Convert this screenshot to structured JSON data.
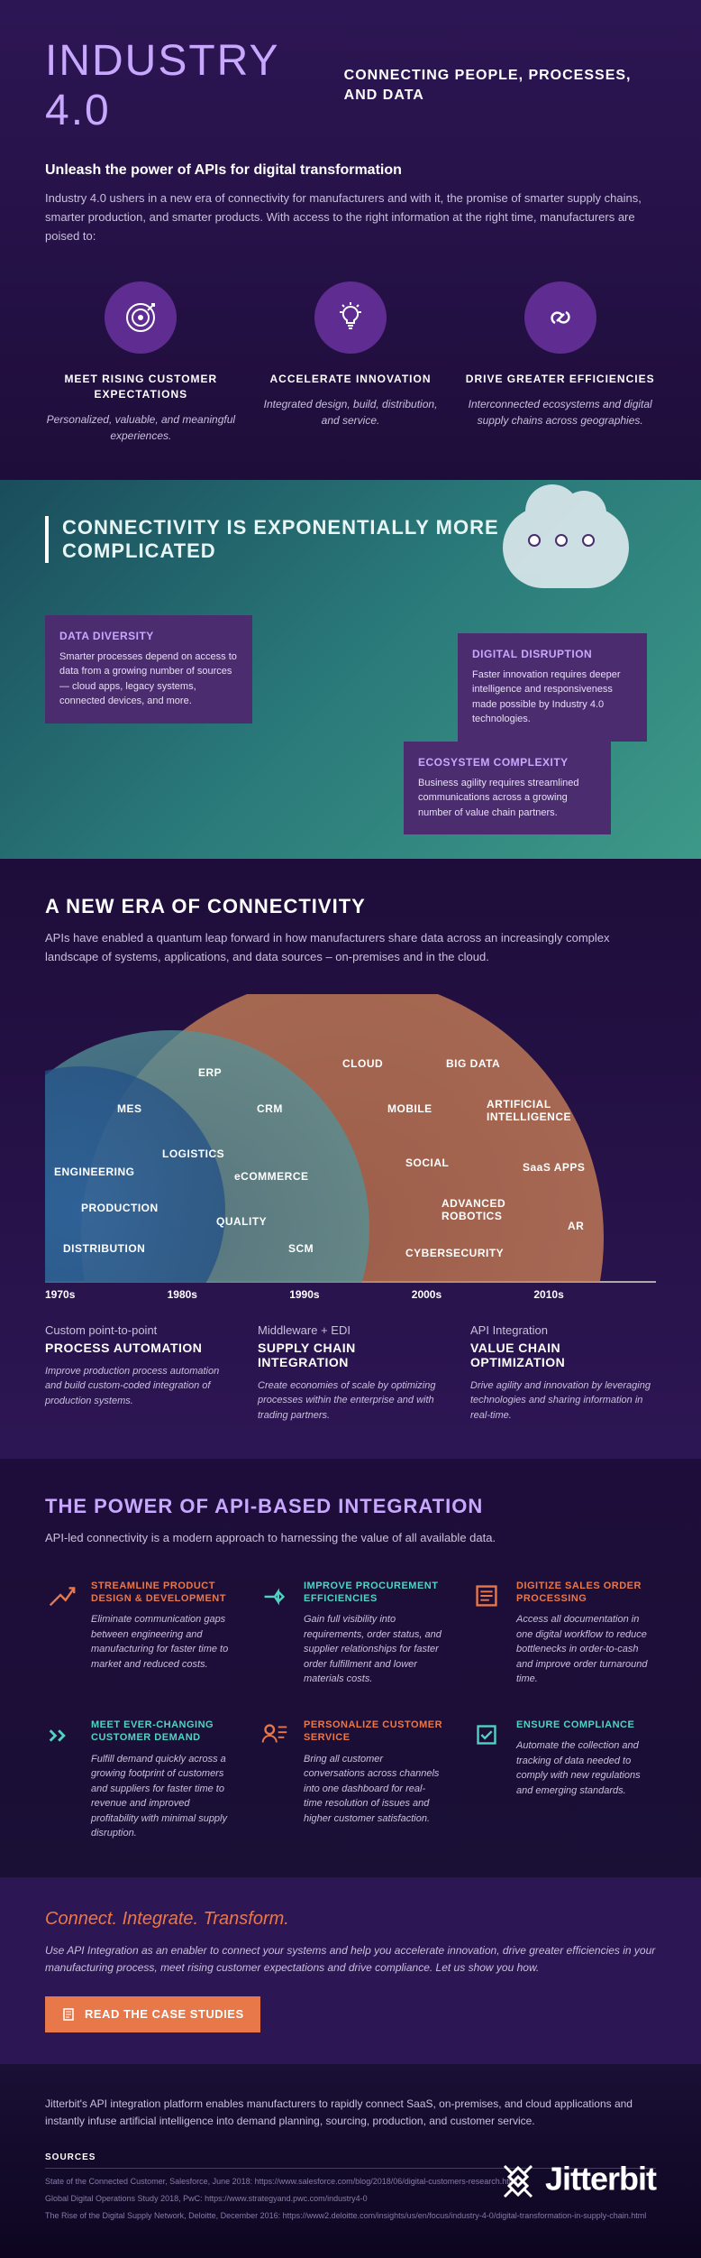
{
  "header": {
    "title": "INDUSTRY 4.0",
    "title_color": "#c8a8ff",
    "tagline": "CONNECTING PEOPLE, PROCESSES, AND DATA",
    "subtitle": "Unleash the power of APIs for digital transformation",
    "intro": "Industry 4.0 ushers in a new era of connectivity for manufacturers and with it, the promise of smarter supply chains, smarter production, and smarter products. With access to the right information at the right time, manufacturers are poised to:",
    "icon_bg": "#5f2c91",
    "pillars": [
      {
        "title": "MEET RISING CUSTOMER EXPECTATIONS",
        "desc": "Personalized, valuable, and meaningful experiences."
      },
      {
        "title": "ACCELERATE INNOVATION",
        "desc": "Integrated design, build, distribution, and service."
      },
      {
        "title": "DRIVE GREATER EFFICIENCIES",
        "desc": "Interconnected ecosystems and digital supply chains across geographies."
      }
    ]
  },
  "connectivity": {
    "title": "CONNECTIVITY IS EXPONENTIALLY MORE COMPLICATED",
    "box_bg": "#4a2c6f",
    "boxes": [
      {
        "title": "DATA DIVERSITY",
        "text": "Smarter processes depend on access to data from a growing number of sources — cloud apps, legacy systems, connected devices, and more."
      },
      {
        "title": "DIGITAL DISRUPTION",
        "text": "Faster innovation requires deeper intelligence and responsiveness made possible by Industry 4.0 technologies."
      },
      {
        "title": "ECOSYSTEM COMPLEXITY",
        "text": "Business agility requires streamlined communications across a growing number of value chain partners."
      }
    ]
  },
  "era": {
    "title": "A NEW ERA OF CONNECTIVITY",
    "intro": "APIs have enabled a quantum leap forward in how manufacturers share data across an increasingly complex landscape of systems, applications, and data sources – on-premises and in the cloud.",
    "arc_colors": [
      "#2a5f9e",
      "#5a9d9d",
      "#d68a5c"
    ],
    "labels": {
      "arc1": [
        "ENGINEERING",
        "PRODUCTION",
        "DISTRIBUTION"
      ],
      "arc2": [
        "MES",
        "ERP",
        "LOGISTICS",
        "CRM",
        "eCOMMERCE",
        "QUALITY",
        "SCM"
      ],
      "arc3": [
        "CLOUD",
        "MOBILE",
        "SOCIAL",
        "BIG DATA",
        "ARTIFICIAL INTELLIGENCE",
        "SaaS APPS",
        "ADVANCED ROBOTICS",
        "CYBERSECURITY",
        "AR"
      ]
    },
    "timeline": [
      "1970s",
      "1980s",
      "1990s",
      "2000s",
      "2010s"
    ],
    "columns": [
      {
        "sub": "Custom point-to-point",
        "name": "PROCESS AUTOMATION",
        "desc": "Improve production process automation and build custom-coded integration of production systems."
      },
      {
        "sub": "Middleware + EDI",
        "name": "SUPPLY CHAIN INTEGRATION",
        "desc": "Create economies of scale by optimizing processes within the enterprise and with trading partners."
      },
      {
        "sub": "API Integration",
        "name": "VALUE CHAIN OPTIMIZATION",
        "desc": "Drive agility and innovation by leveraging technologies and sharing information in real-time."
      }
    ]
  },
  "power": {
    "title": "THE POWER OF API-BASED INTEGRATION",
    "intro": "API-led connectivity is a modern approach to harnessing the value of all available data.",
    "orange": "#e8784a",
    "teal": "#4fd4c4",
    "benefits": [
      {
        "color": "orange",
        "title": "STREAMLINE PRODUCT DESIGN & DEVELOPMENT",
        "desc": "Eliminate communication gaps between engineering and manufacturing for faster time to market and reduced costs."
      },
      {
        "color": "teal",
        "title": "IMPROVE PROCUREMENT EFFICIENCIES",
        "desc": "Gain full visibility into requirements, order status, and supplier relationships for faster order fulfillment and lower materials costs."
      },
      {
        "color": "orange",
        "title": "DIGITIZE SALES ORDER PROCESSING",
        "desc": "Access all documentation in one digital workflow to reduce bottlenecks in order-to-cash and improve order turnaround time."
      },
      {
        "color": "teal",
        "title": "MEET EVER-CHANGING CUSTOMER DEMAND",
        "desc": "Fulfill demand quickly across a growing footprint of customers and suppliers for faster time to revenue and improved profitability with minimal supply disruption."
      },
      {
        "color": "orange",
        "title": "PERSONALIZE CUSTOMER SERVICE",
        "desc": "Bring all customer conversations across channels into one dashboard for real-time resolution of issues and higher customer satisfaction."
      },
      {
        "color": "teal",
        "title": "ENSURE COMPLIANCE",
        "desc": "Automate the collection and tracking of data needed to comply with new regulations and emerging standards."
      }
    ]
  },
  "cta": {
    "title": "Connect. Integrate. Transform.",
    "title_color": "#e8784a",
    "text": "Use API Integration as an enabler to connect your systems and help you accelerate innovation, drive greater efficiencies in your manufacturing process, meet rising customer expectations and drive compliance. Let us show you how.",
    "button": "READ THE CASE STUDIES",
    "button_bg": "#e8784a"
  },
  "footer": {
    "text": "Jitterbit's API integration platform enables manufacturers to rapidly connect SaaS, on-premises, and cloud applications and instantly infuse artificial intelligence into demand planning, sourcing, production, and customer service.",
    "sources_title": "SOURCES",
    "sources": [
      "State of the Connected Customer, Salesforce, June 2018: https://www.salesforce.com/blog/2018/06/digital-customers-research.html",
      "Global Digital Operations Study 2018, PwC: https://www.strategyand.pwc.com/industry4-0",
      "The Rise of the Digital Supply Network, Deloitte, December 2016: https://www2.deloitte.com/insights/us/en/focus/industry-4-0/digital-transformation-in-supply-chain.html"
    ],
    "logo": "Jitterbit"
  }
}
